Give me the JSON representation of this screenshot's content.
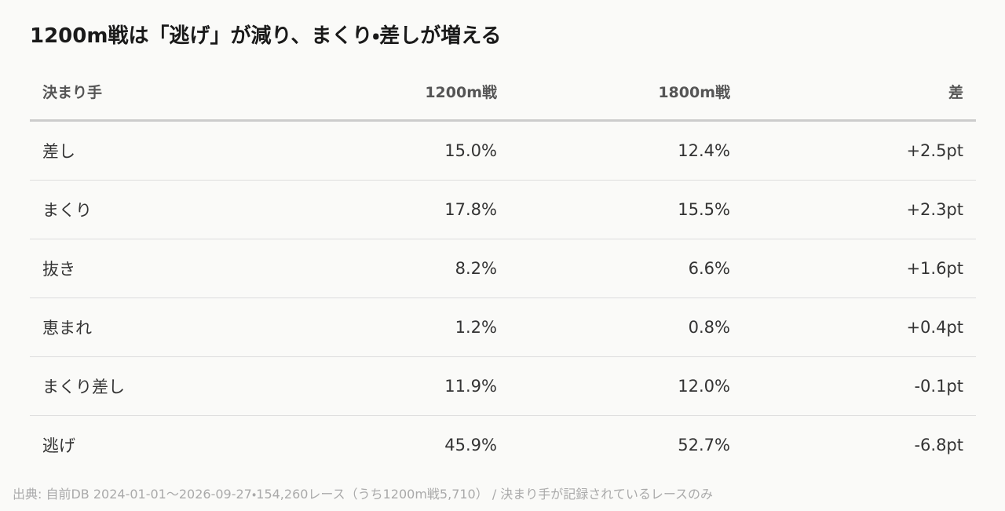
{
  "title": "1200m戦は「逃げ」が減り、まくり・差しが増える",
  "table": {
    "header": [
      "決まり手",
      "1200m戦",
      "1800m戦",
      "差"
    ],
    "rows": [
      [
        "差し",
        "15.0%",
        "12.4%",
        "+2.5pt"
      ],
      [
        "まくり",
        "17.8%",
        "15.5%",
        "+2.3pt"
      ],
      [
        "抜き",
        "8.2%",
        "6.6%",
        "+1.6pt"
      ],
      [
        "恵まれ",
        "1.2%",
        "0.8%",
        "+0.4pt"
      ],
      [
        "まくり差し",
        "11.9%",
        "12.0%",
        "-0.1pt"
      ],
      [
        "逃げ",
        "45.9%",
        "52.7%",
        "-6.8pt"
      ]
    ]
  },
  "source": "出典: 自前DB 2024-01-01〜2026-09-27・154,260レース（うち1200m戦5,710） / 決まり手が記録されているレースのみ"
}
